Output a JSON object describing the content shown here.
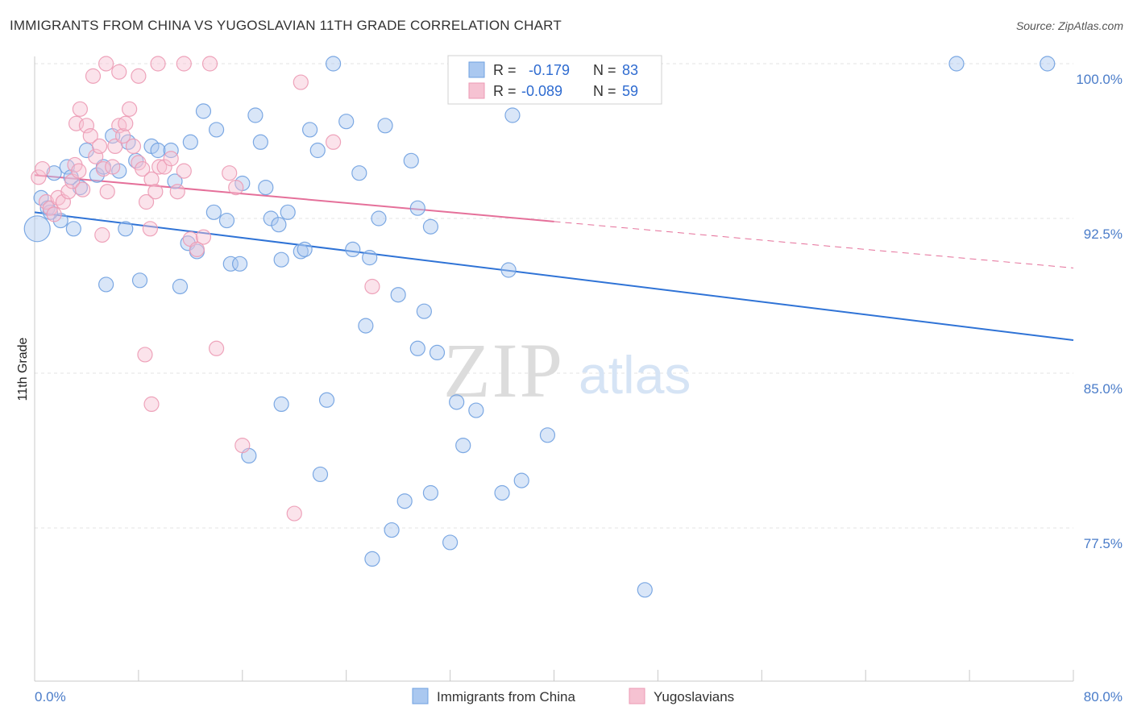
{
  "header": {
    "title": "IMMIGRANTS FROM CHINA VS YUGOSLAVIAN 11TH GRADE CORRELATION CHART",
    "source": "Source: ZipAtlas.com"
  },
  "watermark": {
    "zip": "ZIP",
    "atlas": "atlas"
  },
  "stats_legend": {
    "rows": [
      {
        "r_label": "R =",
        "r_value": "-0.179",
        "n_label": "N =",
        "n_value": "83"
      },
      {
        "r_label": "R =",
        "r_value": "-0.089",
        "n_label": "N =",
        "n_value": "59"
      }
    ]
  },
  "chart_data": {
    "type": "scatter",
    "ylabel": "11th Grade",
    "xlim": [
      0,
      80
    ],
    "ylim": [
      70.0,
      100.5
    ],
    "x_tick_labels": [
      {
        "value": 0,
        "label": "0.0%"
      },
      {
        "value": 80,
        "label": "80.0%"
      }
    ],
    "y_tick_labels": [
      {
        "value": 100.0,
        "label": "100.0%"
      },
      {
        "value": 92.5,
        "label": "92.5%"
      },
      {
        "value": 85.0,
        "label": "85.0%"
      },
      {
        "value": 77.5,
        "label": "77.5%"
      }
    ],
    "x_minor_ticks": [
      0,
      8,
      16,
      24,
      32,
      40,
      48,
      56,
      64,
      72,
      80
    ],
    "grid": true,
    "legend_position": "top-center",
    "series": [
      {
        "name": "Immigrants from China",
        "color": "#6fa0e0",
        "fill": "#aac8f0",
        "trend": {
          "x0": 0,
          "y0": 92.8,
          "x1": 80,
          "y1": 86.6,
          "dashed_from": null
        },
        "points": [
          [
            0.2,
            92.0
          ],
          [
            0.5,
            93.5
          ],
          [
            1.0,
            93.0
          ],
          [
            1.5,
            94.7
          ],
          [
            2.0,
            92.4
          ],
          [
            2.5,
            95.0
          ],
          [
            2.8,
            94.5
          ],
          [
            3.5,
            94.0
          ],
          [
            1.2,
            92.8
          ],
          [
            4.0,
            95.8
          ],
          [
            4.8,
            94.6
          ],
          [
            5.3,
            95.0
          ],
          [
            6.0,
            96.5
          ],
          [
            6.5,
            94.8
          ],
          [
            5.5,
            89.3
          ],
          [
            7.2,
            96.2
          ],
          [
            7.0,
            92.0
          ],
          [
            7.8,
            95.3
          ],
          [
            8.1,
            89.5
          ],
          [
            9.0,
            96.0
          ],
          [
            9.5,
            95.8
          ],
          [
            10.5,
            95.8
          ],
          [
            10.8,
            94.3
          ],
          [
            11.2,
            89.2
          ],
          [
            11.8,
            91.3
          ],
          [
            12.0,
            96.2
          ],
          [
            12.5,
            90.9
          ],
          [
            13.0,
            97.7
          ],
          [
            13.8,
            92.8
          ],
          [
            14.0,
            96.8
          ],
          [
            14.8,
            92.4
          ],
          [
            15.1,
            90.3
          ],
          [
            15.8,
            90.3
          ],
          [
            16.0,
            94.2
          ],
          [
            17.0,
            97.5
          ],
          [
            17.4,
            96.2
          ],
          [
            17.8,
            94.0
          ],
          [
            18.2,
            92.5
          ],
          [
            18.8,
            92.2
          ],
          [
            19.0,
            90.5
          ],
          [
            19.5,
            92.8
          ],
          [
            20.5,
            90.9
          ],
          [
            20.8,
            91.0
          ],
          [
            21.2,
            96.8
          ],
          [
            21.8,
            95.8
          ],
          [
            22.5,
            83.7
          ],
          [
            22.0,
            80.1
          ],
          [
            23.0,
            100.0
          ],
          [
            24.0,
            97.2
          ],
          [
            25.0,
            94.7
          ],
          [
            25.5,
            87.3
          ],
          [
            24.5,
            91.0
          ],
          [
            25.8,
            90.6
          ],
          [
            26.5,
            92.5
          ],
          [
            27.0,
            97.0
          ],
          [
            29.0,
            95.3
          ],
          [
            29.5,
            93.0
          ],
          [
            30.5,
            92.1
          ],
          [
            30.0,
            88.0
          ],
          [
            29.5,
            86.2
          ],
          [
            28.0,
            88.8
          ],
          [
            26.0,
            76.0
          ],
          [
            27.5,
            77.4
          ],
          [
            28.5,
            78.8
          ],
          [
            30.5,
            79.2
          ],
          [
            31.0,
            86.0
          ],
          [
            32.5,
            83.6
          ],
          [
            33.0,
            81.5
          ],
          [
            32.0,
            76.8
          ],
          [
            34.0,
            83.2
          ],
          [
            35.5,
            100.0
          ],
          [
            36.5,
            90.0
          ],
          [
            36.0,
            79.2
          ],
          [
            37.5,
            79.8
          ],
          [
            36.8,
            97.5
          ],
          [
            39.5,
            82.0
          ],
          [
            47.0,
            74.5
          ],
          [
            71.0,
            100.0
          ],
          [
            78.0,
            100.0
          ],
          [
            32.5,
            100.0
          ],
          [
            16.5,
            81.0
          ],
          [
            19.0,
            83.5
          ],
          [
            3.0,
            92.0
          ]
        ]
      },
      {
        "name": "Yugoslavians",
        "color": "#ec9ab4",
        "fill": "#f6c2d2",
        "trend": {
          "x0": 0,
          "y0": 94.6,
          "x1": 80,
          "y1": 90.1,
          "dashed_from": 40
        },
        "points": [
          [
            0.3,
            94.5
          ],
          [
            0.6,
            94.9
          ],
          [
            0.9,
            93.3
          ],
          [
            1.2,
            93.0
          ],
          [
            1.5,
            92.7
          ],
          [
            1.8,
            93.5
          ],
          [
            2.2,
            93.3
          ],
          [
            2.6,
            93.8
          ],
          [
            2.9,
            94.3
          ],
          [
            3.1,
            95.1
          ],
          [
            3.4,
            94.8
          ],
          [
            3.7,
            93.9
          ],
          [
            3.2,
            97.1
          ],
          [
            3.5,
            97.8
          ],
          [
            4.0,
            97.0
          ],
          [
            4.3,
            96.5
          ],
          [
            4.7,
            95.5
          ],
          [
            5.0,
            96.0
          ],
          [
            5.3,
            94.9
          ],
          [
            5.6,
            93.8
          ],
          [
            5.2,
            91.7
          ],
          [
            6.0,
            95.0
          ],
          [
            6.2,
            96.0
          ],
          [
            6.5,
            97.0
          ],
          [
            6.8,
            96.5
          ],
          [
            7.0,
            97.1
          ],
          [
            7.3,
            97.8
          ],
          [
            7.6,
            96.0
          ],
          [
            8.0,
            95.2
          ],
          [
            8.3,
            94.9
          ],
          [
            8.6,
            93.3
          ],
          [
            9.0,
            94.4
          ],
          [
            9.3,
            93.8
          ],
          [
            8.9,
            92.0
          ],
          [
            9.6,
            95.0
          ],
          [
            10.0,
            95.0
          ],
          [
            10.5,
            95.4
          ],
          [
            11.0,
            93.8
          ],
          [
            11.5,
            94.8
          ],
          [
            12.0,
            91.5
          ],
          [
            12.5,
            91.0
          ],
          [
            13.0,
            91.6
          ],
          [
            14.0,
            86.2
          ],
          [
            15.0,
            94.7
          ],
          [
            16.0,
            81.5
          ],
          [
            15.5,
            94.0
          ],
          [
            4.5,
            99.4
          ],
          [
            6.5,
            99.6
          ],
          [
            5.5,
            100.0
          ],
          [
            9.5,
            100.0
          ],
          [
            11.5,
            100.0
          ],
          [
            13.5,
            100.0
          ],
          [
            8.0,
            99.4
          ],
          [
            20.5,
            99.1
          ],
          [
            23.0,
            96.2
          ],
          [
            26.0,
            89.2
          ],
          [
            8.5,
            85.9
          ],
          [
            9.0,
            83.5
          ],
          [
            20.0,
            78.2
          ]
        ]
      }
    ]
  },
  "bottom_legend": {
    "items": [
      {
        "label": "Immigrants from China"
      },
      {
        "label": "Yugoslavians"
      }
    ]
  }
}
